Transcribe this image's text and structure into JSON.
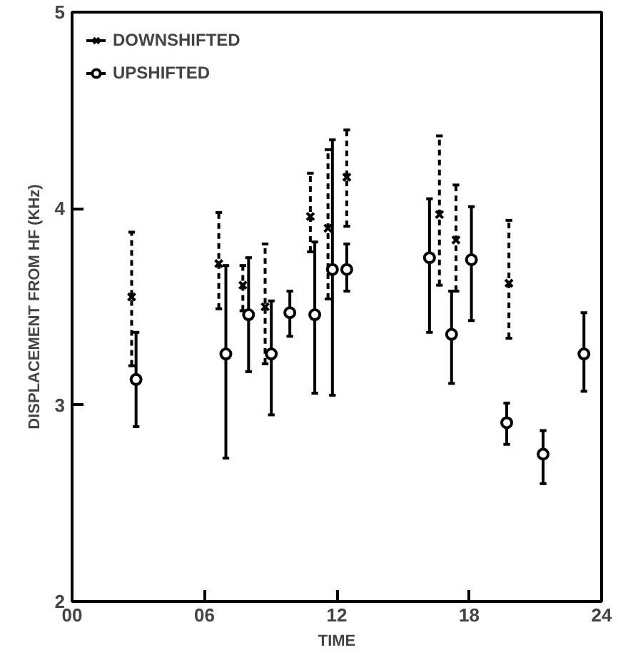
{
  "chart_data": {
    "type": "scatter",
    "xlabel": "TIME",
    "ylabel": "DISPLACEMENT FROM HF (KHz)",
    "xlim": [
      0,
      24
    ],
    "ylim": [
      2,
      5
    ],
    "xticks": [
      {
        "value": 0,
        "label": "00"
      },
      {
        "value": 6,
        "label": "06"
      },
      {
        "value": 12,
        "label": "12"
      },
      {
        "value": 18,
        "label": "18"
      },
      {
        "value": 24,
        "label": "24"
      }
    ],
    "yticks": [
      2,
      3,
      4,
      5
    ],
    "grid": false,
    "legend": "top left",
    "series": [
      {
        "name": "DOWNSHIFTED",
        "color": "#000000",
        "marker": "cross",
        "line_style": "dashed",
        "x": [
          2.7,
          6.65,
          7.74,
          8.75,
          10.8,
          11.6,
          12.45,
          16.65,
          17.4,
          19.8
        ],
        "values": [
          3.55,
          3.72,
          3.61,
          3.5,
          3.96,
          3.9,
          4.16,
          3.97,
          3.84,
          3.62
        ],
        "errors": [
          [
            3.2,
            3.88
          ],
          [
            3.49,
            3.98
          ],
          [
            3.48,
            3.71
          ],
          [
            3.21,
            3.82
          ],
          [
            3.78,
            4.18
          ],
          [
            3.54,
            4.3
          ],
          [
            3.91,
            4.4
          ],
          [
            3.61,
            4.37
          ],
          [
            3.58,
            4.12
          ],
          [
            3.34,
            3.94
          ]
        ]
      },
      {
        "name": "UPSHIFTED",
        "color": "#000000",
        "marker": "circle",
        "line_style": "solid",
        "x": [
          2.9,
          6.97,
          8.0,
          9.03,
          9.87,
          11.0,
          11.8,
          12.45,
          16.2,
          17.2,
          18.1,
          19.7,
          21.35,
          23.2
        ],
        "values": [
          3.13,
          3.26,
          3.46,
          3.26,
          3.47,
          3.46,
          3.69,
          3.69,
          3.75,
          3.36,
          3.74,
          2.91,
          2.75,
          3.26
        ],
        "errors": [
          [
            2.89,
            3.37
          ],
          [
            2.73,
            3.71
          ],
          [
            3.17,
            3.75
          ],
          [
            2.95,
            3.53
          ],
          [
            3.35,
            3.58
          ],
          [
            3.06,
            3.83
          ],
          [
            3.05,
            4.35
          ],
          [
            3.58,
            3.82
          ],
          [
            3.37,
            4.05
          ],
          [
            3.11,
            3.58
          ],
          [
            3.43,
            4.01
          ],
          [
            2.8,
            3.01
          ],
          [
            2.6,
            2.87
          ],
          [
            3.07,
            3.47
          ]
        ]
      }
    ]
  }
}
